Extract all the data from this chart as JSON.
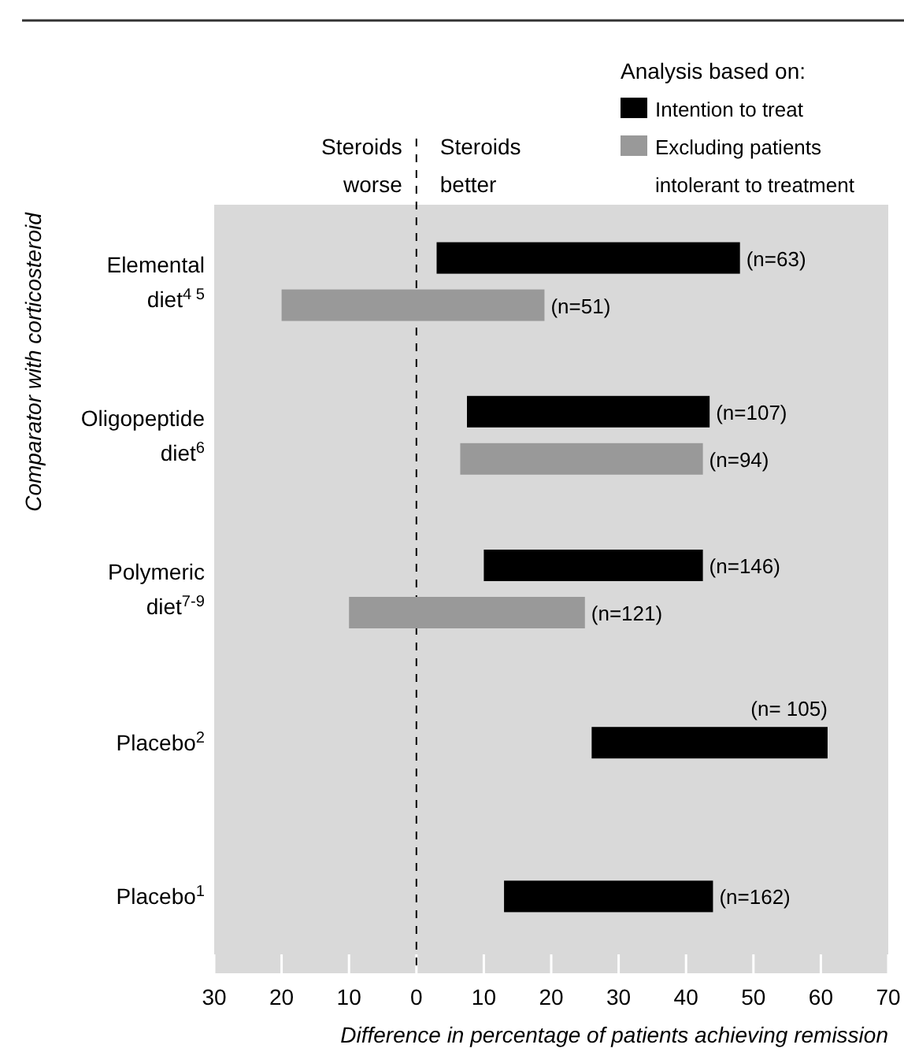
{
  "chart_data": {
    "type": "bar",
    "orientation": "horizontal",
    "ylabel": "Comparator with corticosteroid",
    "xlabel": "Difference in percentage of patients achieving remission",
    "legend_title": "Analysis based on:",
    "legend": "top right",
    "categories": [
      "Elemental diet$^{4 5}$",
      "Oligopeptide diet$^{6}$",
      "Polymeric diet$^{7-9}$",
      "Placebo$^{2}$",
      "Placebo$^{1}$"
    ],
    "series": [
      {
        "name": "Intention to treat",
        "color": "#000000",
        "base": [
          3,
          7.5,
          10,
          26,
          13
        ],
        "values": [
          45,
          36,
          32.5,
          35,
          31
        ]
      },
      {
        "name": "Excluding patients intolerant to treatment",
        "color": "#999999",
        "base": [
          -20,
          6.5,
          -10,
          null,
          null
        ],
        "values": [
          39,
          36,
          35,
          null,
          null
        ]
      }
    ],
    "xlim": [
      -30,
      70
    ],
    "xticks": [
      {
        "value": -30,
        "label": "30"
      },
      {
        "value": -20,
        "label": "20"
      },
      {
        "value": -10,
        "label": "10"
      },
      0,
      10,
      20,
      30,
      40,
      50,
      60,
      70
    ],
    "ref_lines": [
      {
        "axis": "x",
        "value": 0,
        "line_style": "dashed",
        "color": "#000000"
      }
    ],
    "annotations": [
      "Steroids worse",
      "Steroids better",
      "(n=63)",
      "(n=51)",
      "(n=107)",
      "(n=94)",
      "(n=146)",
      "(n=121)",
      "(n= 105)",
      "(n=162)"
    ],
    "grid": false
  }
}
